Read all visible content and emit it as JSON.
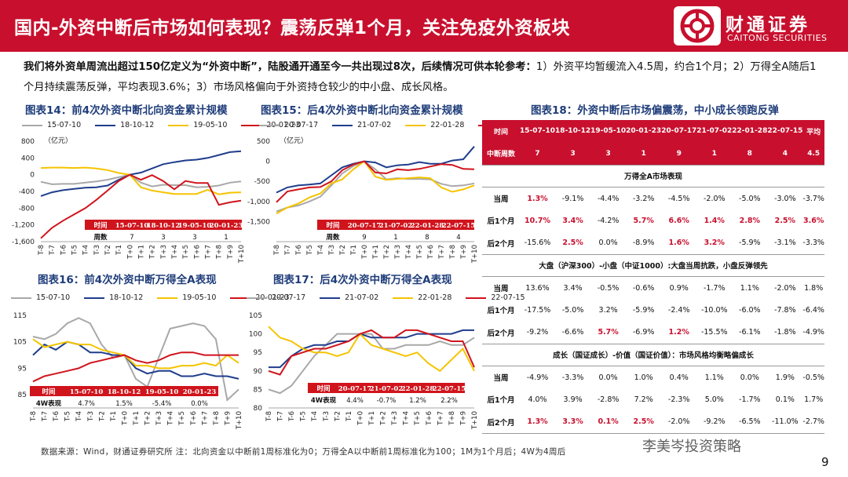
{
  "header": {
    "title": "国内-外资中断后市场如何表现？震荡反弹1个月，关注免疫外资板块",
    "brand_cn": "财通证券",
    "brand_en": "CAITONG SECURITIES"
  },
  "intro": {
    "bold": "我们将外资单周流出超过150亿定义为“外资中断”，陆股通开通至今一共出现过8次，后续情况可供本轮参考：",
    "rest": "1）外资平均暂缓流入4.5周，约合1个月；2）万得全A随后1个月持续震荡反弹，平均表现3.6%；3）市场风格偏向于外资持仓较少的中小盘、成长风格。"
  },
  "colors": {
    "grey": "#a8a8a8",
    "blue": "#1f3d8c",
    "yellow": "#f5c400",
    "red": "#d0141c",
    "brand": "#c8102e"
  },
  "xticks": [
    "T-8",
    "T-7",
    "T-6",
    "T-5",
    "T-4",
    "T-3",
    "T-2",
    "T-1",
    "T+0",
    "T+1",
    "T+2",
    "T+3",
    "T+4",
    "T+5",
    "T+6",
    "T+7",
    "T+8",
    "T+9",
    "T+10"
  ],
  "charts": [
    {
      "id": "c14",
      "title": "图表14：前4次外资中断北向资金累计规模",
      "unit": "（亿元）",
      "ylim": [
        -1600,
        800
      ],
      "yticks": [
        -1600,
        -1400,
        -1200,
        -1000,
        -800,
        -600,
        -400,
        -200,
        0,
        200,
        400,
        600,
        800
      ],
      "ylabels": [
        "-1,600",
        "",
        "-1,200",
        "",
        "-800",
        "",
        "-400",
        "",
        "0",
        "",
        "400",
        "",
        "800"
      ],
      "series": [
        {
          "name": "15-07-10",
          "color": "grey",
          "values": [
            -170,
            -230,
            -220,
            -220,
            -190,
            -160,
            -120,
            -60,
            0,
            -190,
            -280,
            -240,
            -250,
            -250,
            -300,
            -290,
            -260,
            -190,
            -160
          ]
        },
        {
          "name": "18-10-12",
          "color": "blue",
          "values": [
            -510,
            -420,
            -370,
            -340,
            -310,
            -300,
            -260,
            -120,
            0,
            50,
            150,
            250,
            300,
            340,
            360,
            400,
            470,
            540,
            560
          ]
        },
        {
          "name": "19-05-10",
          "color": "yellow",
          "values": [
            160,
            170,
            170,
            160,
            170,
            150,
            110,
            40,
            0,
            -300,
            -380,
            -420,
            -460,
            -460,
            -460,
            -360,
            -470,
            -430,
            -420
          ]
        },
        {
          "name": "20-01-23",
          "color": "red",
          "values": [
            -1520,
            -1270,
            -1100,
            -950,
            -800,
            -600,
            -380,
            -150,
            0,
            -120,
            -10,
            -150,
            -350,
            -150,
            -200,
            -200,
            -720,
            -660,
            -620
          ]
        }
      ],
      "inset": {
        "header": [
          "时间",
          "15-07-10",
          "18-10-12",
          "19-05-10",
          "20-01-23"
        ],
        "row": [
          "周数",
          "7",
          "3",
          "3",
          "1"
        ]
      }
    },
    {
      "id": "c15",
      "title": "图表15：后4次外资中断北向资金累计规模",
      "unit": "（亿元）",
      "ylim": [
        -2000,
        500
      ],
      "yticks": [
        -2000,
        -1500,
        -1000,
        -500,
        0,
        500
      ],
      "ylabels": [
        "",
        "-1,500",
        "-1,000",
        "-500",
        "0",
        "500"
      ],
      "series": [
        {
          "name": "20-07-17",
          "color": "grey",
          "values": [
            -1250,
            -1150,
            -1100,
            -1000,
            -880,
            -600,
            -300,
            -120,
            0,
            -200,
            -450,
            -420,
            -440,
            -440,
            -450,
            -560,
            -620,
            -600,
            -550
          ]
        },
        {
          "name": "21-07-02",
          "color": "blue",
          "values": [
            -780,
            -650,
            -600,
            -580,
            -550,
            -350,
            -150,
            -60,
            0,
            -30,
            -150,
            -100,
            -80,
            -20,
            -60,
            -60,
            20,
            50,
            370
          ]
        },
        {
          "name": "22-01-28",
          "color": "yellow",
          "values": [
            -1300,
            -1150,
            -1050,
            -900,
            -800,
            -550,
            -450,
            -200,
            0,
            -380,
            -460,
            -440,
            -420,
            -400,
            -420,
            -650,
            -760,
            -700,
            -600
          ]
        },
        {
          "name": "22-07-15",
          "color": "red",
          "values": [
            -1020,
            -750,
            -700,
            -650,
            -640,
            -500,
            -220,
            -80,
            0,
            -280,
            -300,
            -200,
            -220,
            -190,
            -130,
            -70,
            -90,
            -190,
            -200
          ]
        }
      ],
      "inset": {
        "header": [
          "时间",
          "20-07-17",
          "21-07-02",
          "22-01-28",
          "22-07-15"
        ],
        "row": [
          "周数",
          "9",
          "1",
          "8",
          "4"
        ]
      }
    },
    {
      "id": "c16",
      "title": "图表16：前4次外资中断万得全A表现",
      "ylim": [
        80,
        115
      ],
      "yticks": [
        85,
        95,
        105,
        115
      ],
      "ylabels": [
        "85",
        "95",
        "105",
        "115"
      ],
      "series": [
        {
          "name": "15-07-10",
          "color": "grey",
          "values": [
            107,
            106,
            108,
            112,
            114,
            112,
            104,
            99,
            100,
            91,
            88,
            99,
            110,
            111,
            112,
            111,
            106,
            83,
            87
          ]
        },
        {
          "name": "18-10-12",
          "color": "blue",
          "values": [
            100,
            104,
            102,
            105,
            104,
            101,
            101,
            100,
            100,
            95,
            93,
            94,
            94,
            92,
            92,
            93,
            92,
            92,
            91
          ]
        },
        {
          "name": "19-05-10",
          "color": "yellow",
          "values": [
            106,
            103,
            104,
            105,
            104,
            104,
            102,
            101,
            100,
            96,
            96,
            95,
            95,
            96,
            96,
            97,
            96,
            100,
            97
          ]
        },
        {
          "name": "20-01-23",
          "color": "red",
          "values": [
            90,
            92,
            93,
            94,
            95,
            97,
            98,
            99,
            100,
            98,
            97,
            98,
            100,
            101,
            101,
            100,
            100,
            100,
            100
          ]
        }
      ],
      "inset": {
        "header": [
          "时间",
          "15-07-10",
          "18-10-12",
          "19-05-10",
          "20-01-23"
        ],
        "row": [
          "4W表现",
          "4.7%",
          "1.5%",
          "-5.4%",
          "0.0%"
        ]
      }
    },
    {
      "id": "c17",
      "title": "图表17：后4次外资中断万得全A表现",
      "ylim": [
        80,
        105
      ],
      "yticks": [
        80,
        85,
        90,
        95,
        100,
        105
      ],
      "ylabels": [
        "80",
        "85",
        "90",
        "95",
        "100",
        "105"
      ],
      "series": [
        {
          "name": "20-07-17",
          "color": "grey",
          "values": [
            85,
            84,
            86,
            90,
            94,
            97,
            100,
            100,
            100,
            100,
            96,
            96,
            97,
            97,
            97,
            98,
            97,
            97,
            99
          ]
        },
        {
          "name": "21-07-02",
          "color": "blue",
          "values": [
            91,
            91,
            94,
            96,
            97,
            97,
            98,
            98,
            100,
            99,
            99,
            99,
            99,
            100,
            100,
            100,
            100,
            101,
            101
          ]
        },
        {
          "name": "22-01-28",
          "color": "yellow",
          "values": [
            102,
            99,
            98,
            96,
            95,
            95,
            94,
            95,
            100,
            97,
            96,
            95,
            94,
            95,
            92,
            90,
            93,
            96,
            90
          ]
        },
        {
          "name": "22-07-15",
          "color": "red",
          "values": [
            90,
            89,
            94,
            95,
            96,
            96,
            97,
            98,
            100,
            101,
            99,
            99,
            101,
            101,
            100,
            99,
            98,
            98,
            91
          ]
        }
      ],
      "inset": {
        "header": [
          "时间",
          "20-07-17",
          "21-07-02",
          "22-01-28",
          "22-07-15"
        ],
        "row": [
          "4W表现",
          "4.4%",
          "-0.7%",
          "1.2%",
          "2.2%"
        ]
      }
    }
  ],
  "table": {
    "title": "图表18：外资中断后市场偏震荡，中小成长领跑反弹",
    "header": [
      "时间",
      "15-07-10",
      "18-10-12",
      "19-05-10",
      "20-01-23",
      "20-07-17",
      "21-07-02",
      "22-01-28",
      "22-07-15",
      "平均"
    ],
    "weeks": [
      "中断周数",
      "7",
      "3",
      "3",
      "1",
      "9",
      "1",
      "8",
      "4",
      "4.5"
    ],
    "sections": [
      {
        "title": "万得全A市场表现",
        "rows": [
          {
            "label": "当周",
            "cells": [
              "1.3%",
              "-9.1%",
              "-4.4%",
              "-3.2%",
              "-4.5%",
              "-2.0%",
              "-5.0%",
              "-3.0%",
              "-3.7%"
            ],
            "red": [
              0
            ]
          },
          {
            "label": "后1个月",
            "cells": [
              "10.7%",
              "3.4%",
              "-4.2%",
              "5.7%",
              "6.6%",
              "1.4%",
              "2.8%",
              "2.5%",
              "3.6%"
            ],
            "red": [
              0,
              1,
              3,
              4,
              5,
              6,
              7,
              8
            ]
          },
          {
            "label": "后2个月",
            "cells": [
              "-15.6%",
              "2.5%",
              "0.0%",
              "-8.9%",
              "1.6%",
              "3.2%",
              "-5.9%",
              "-3.1%",
              "-3.3%"
            ],
            "red": [
              1,
              4,
              5
            ]
          }
        ]
      },
      {
        "title": "大盘（沪深300）-小盘（中证1000）:大盘当周抗跌，小盘反弹领先",
        "rows": [
          {
            "label": "当周",
            "cells": [
              "13.6%",
              "3.4%",
              "-0.5%",
              "-0.6%",
              "0.9%",
              "-1.7%",
              "1.1%",
              "-2.0%",
              "1.8%"
            ],
            "red": []
          },
          {
            "label": "后1个月",
            "cells": [
              "-17.5%",
              "-5.0%",
              "3.2%",
              "-5.9%",
              "-2.4%",
              "-10.0%",
              "-6.0%",
              "-7.8%",
              "-6.4%"
            ],
            "red": []
          },
          {
            "label": "后2个月",
            "cells": [
              "-9.2%",
              "-6.6%",
              "5.7%",
              "-6.9%",
              "1.2%",
              "-15.5%",
              "-6.1%",
              "-1.8%",
              "-4.9%"
            ],
            "red": [
              2,
              4
            ]
          }
        ]
      },
      {
        "title": "成长（国证成长）-价值（国证价值）：市场风格均衡略偏成长",
        "rows": [
          {
            "label": "当周",
            "cells": [
              "-4.9%",
              "-3.3%",
              "0.0%",
              "1.0%",
              "0.4%",
              "1.1%",
              "0.0%",
              "1.9%",
              "-0.5%"
            ],
            "red": []
          },
          {
            "label": "后1个月",
            "cells": [
              "4.0%",
              "3.9%",
              "-2.8%",
              "7.2%",
              "-2.3%",
              "5.0%",
              "-1.7%",
              "0.1%",
              "1.7%"
            ],
            "red": []
          },
          {
            "label": "后2个月",
            "cells": [
              "1.3%",
              "3.3%",
              "0.1%",
              "2.5%",
              "-2.0%",
              "-9.2%",
              "-6.5%",
              "-11.0%",
              "-2.7%"
            ],
            "red": [
              0,
              1,
              2,
              3
            ]
          }
        ]
      }
    ]
  },
  "footer": "数据来源：Wind，财通证券研究所   注：北向资金以中断前1周标准化为0；万得全A以中断前1周标准化为100；1M为1个月后；4W为4周后",
  "watermark": "李美岑投资策略",
  "page": "9"
}
